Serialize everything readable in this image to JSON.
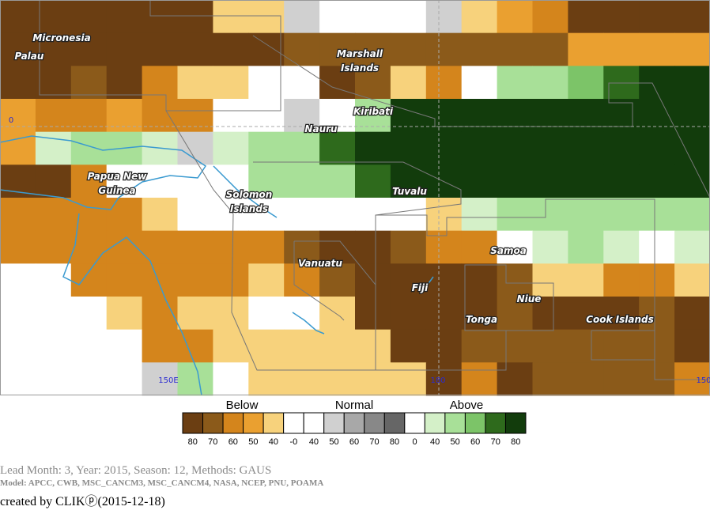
{
  "map": {
    "labels": [
      {
        "lines": [
          "Micronesia"
        ]
      },
      {
        "lines": [
          "Palau"
        ]
      },
      {
        "lines": [
          "Marshall",
          "Islands"
        ]
      },
      {
        "lines": [
          "Kiribati"
        ]
      },
      {
        "lines": [
          "Nauru"
        ]
      },
      {
        "lines": [
          "Papua New",
          "Guinea"
        ]
      },
      {
        "lines": [
          "Solomon",
          "Islands"
        ]
      },
      {
        "lines": [
          "Tuvalu"
        ]
      },
      {
        "lines": [
          "Samoa"
        ]
      },
      {
        "lines": [
          "Vanuatu"
        ]
      },
      {
        "lines": [
          "Fiji"
        ]
      },
      {
        "lines": [
          "Niue"
        ]
      },
      {
        "lines": [
          "Tonga"
        ]
      },
      {
        "lines": [
          "Cook Islands"
        ]
      }
    ],
    "axis_labels": [
      "0",
      "150E",
      "180",
      "150"
    ]
  },
  "legend": {
    "groups": [
      "Below",
      "Normal",
      "Above"
    ],
    "items": [
      {
        "label": "80",
        "color": "#6b3e12"
      },
      {
        "label": "70",
        "color": "#8b5a1a"
      },
      {
        "label": "60",
        "color": "#d4851c"
      },
      {
        "label": "50",
        "color": "#eaa030"
      },
      {
        "label": "40",
        "color": "#f7d27c"
      },
      {
        "label": "-0",
        "color": "#ffffff"
      },
      {
        "label": "40",
        "color": "#ffffff"
      },
      {
        "label": "50",
        "color": "#d0d0d0"
      },
      {
        "label": "60",
        "color": "#a8a8a8"
      },
      {
        "label": "70",
        "color": "#888888"
      },
      {
        "label": "80",
        "color": "#666666"
      },
      {
        "label": "0",
        "color": "#ffffff"
      },
      {
        "label": "40",
        "color": "#d4f0c8"
      },
      {
        "label": "50",
        "color": "#a8e098"
      },
      {
        "label": "60",
        "color": "#7cc468"
      },
      {
        "label": "70",
        "color": "#2e6a1c"
      },
      {
        "label": "80",
        "color": "#123c0c"
      }
    ]
  },
  "footer": {
    "line1": "Lead Month: 3, Year: 2015, Season: 12, Methods: GAUS",
    "line2": "Model: APCC, CWB, MSC_CANCM3, MSC_CANCM4, NASA, NCEP, PNU, POAMA",
    "line3": "created by CLIKⓟ(2015-12-18)"
  }
}
